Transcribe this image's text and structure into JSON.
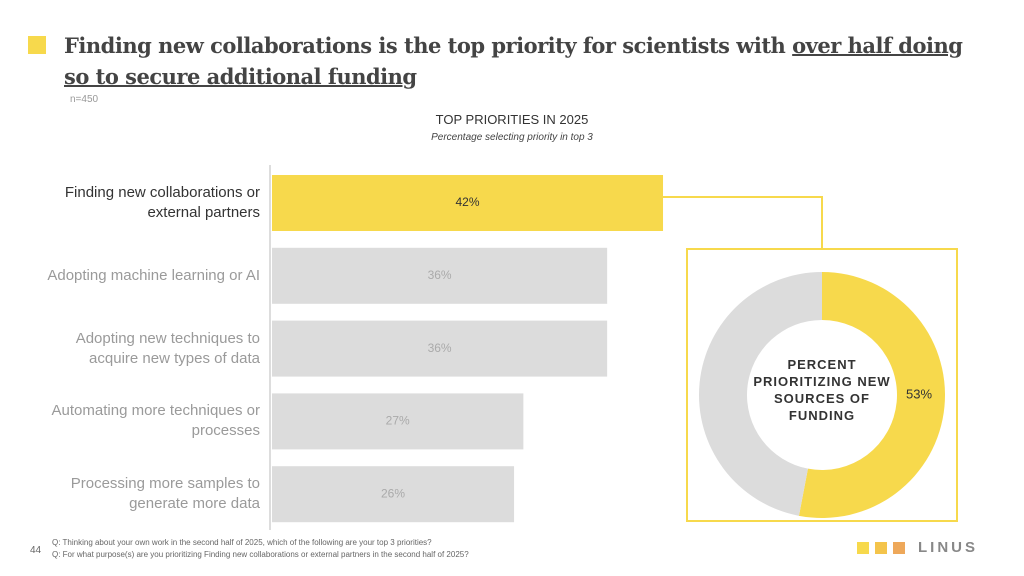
{
  "header": {
    "title_parts": [
      "Finding new collaborations is the top priority for scientists with",
      "over half doing so to secure additional funding"
    ],
    "sample": "n=450"
  },
  "chart_data": [
    {
      "type": "bar",
      "orientation": "horizontal",
      "title": "TOP PRIORITIES IN 2025",
      "subtitle": "Percentage selecting priority in top 3",
      "categories": [
        "Finding new collaborations or external partners",
        "Adopting machine learning or AI",
        "Adopting new techniques to acquire new types of data",
        "Automating more techniques or processes",
        "Processing more samples to generate more data"
      ],
      "values": [
        42,
        36,
        36,
        27,
        26
      ],
      "value_labels": [
        "42%",
        "36%",
        "36%",
        "27%",
        "26%"
      ],
      "colors": [
        "#f7d94c",
        "#dcdcdc",
        "#dcdcdc",
        "#dcdcdc",
        "#dcdcdc"
      ]
    },
    {
      "type": "donut",
      "label_lines": [
        "PERCENT",
        "PRIORITIZING NEW",
        "SOURCES OF",
        "FUNDING"
      ],
      "values": [
        53,
        47
      ],
      "value_labels": [
        "53%"
      ],
      "colors": [
        "#f7d94c",
        "#dcdcdc"
      ]
    }
  ],
  "footer": {
    "page_number": "44",
    "questions": [
      "Q: Thinking about your own work in the second half of  2025, which of the following are your top 3 priorities?",
      "Q: For what purpose(s) are you prioritizing Finding new collaborations or external partners in the second half of 2025?"
    ],
    "logo": "LINUS"
  }
}
